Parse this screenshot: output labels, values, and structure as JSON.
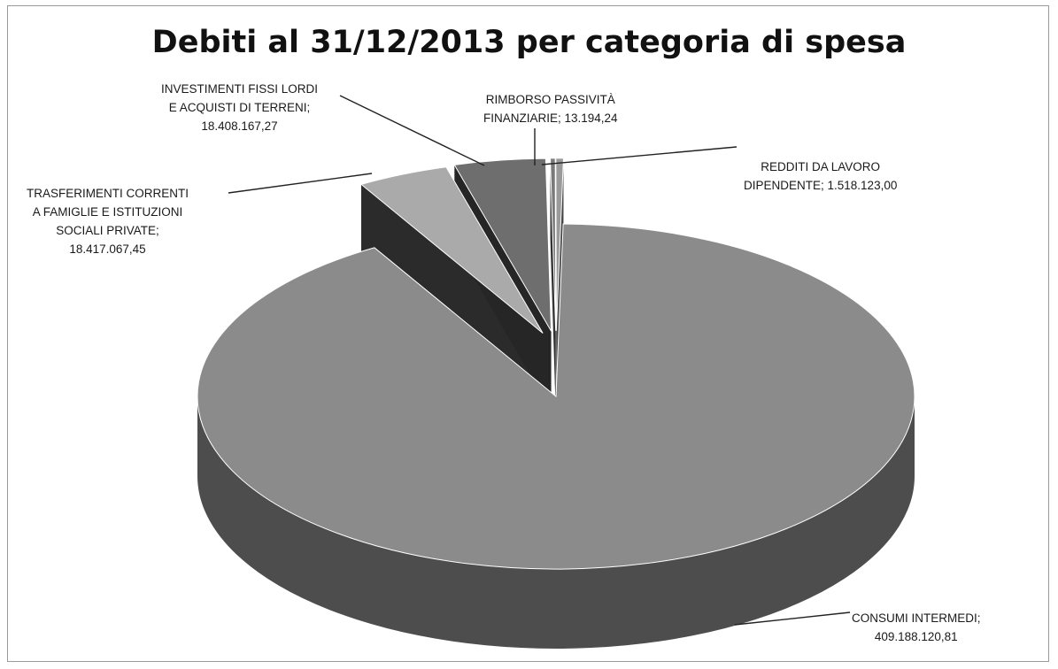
{
  "chart_data": {
    "type": "pie",
    "title": "Debiti al 31/12/2013 per categoria di spesa",
    "slices": [
      {
        "name": "CONSUMI INTERMEDI",
        "value": 409188120.81,
        "label_lines": [
          "CONSUMI INTERMEDI;",
          "409.188.120,81"
        ],
        "exploded": false,
        "top_color": "#8b8b8b",
        "side_color": "#4d4d4d"
      },
      {
        "name": "TRASFERIMENTI CORRENTI A FAMIGLIE E ISTITUZIONI SOCIALI PRIVATE",
        "value": 18417067.45,
        "label_lines": [
          "TRASFERIMENTI CORRENTI",
          "A FAMIGLIE E ISTITUZIONI",
          "SOCIALI PRIVATE;",
          "18.417.067,45"
        ],
        "exploded": true,
        "top_color": "#aaaaaa",
        "side_color": "#2b2b2b"
      },
      {
        "name": "INVESTIMENTI FISSI LORDI E ACQUISTI DI TERRENI",
        "value": 18408167.27,
        "label_lines": [
          "INVESTIMENTI FISSI LORDI",
          "E ACQUISTI DI TERRENI;",
          "18.408.167,27"
        ],
        "exploded": true,
        "top_color": "#6e6e6e",
        "side_color": "#262626"
      },
      {
        "name": "RIMBORSO PASSIVITÀ FINANZIARIE",
        "value": 13194.24,
        "label_lines": [
          "RIMBORSO PASSIVITÀ",
          "FINANZIARIE;  13.194,24"
        ],
        "exploded": true,
        "top_color": "#7a7a7a",
        "side_color": "#333333"
      },
      {
        "name": "REDDITI DA LAVORO DIPENDENTE",
        "value": 1518123.0,
        "label_lines": [
          "REDDITI DA LAVORO",
          "DIPENDENTE;  1.518.123,00"
        ],
        "exploded": true,
        "top_color": "#9a9a9a",
        "side_color": "#444444"
      }
    ],
    "legend": "none"
  }
}
